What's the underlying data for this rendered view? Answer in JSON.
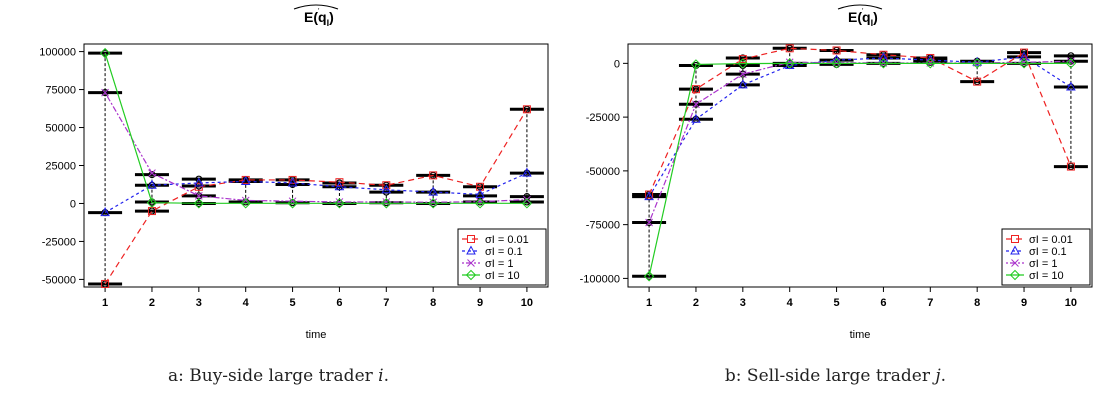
{
  "figure": {
    "caption_a_text": "a: Buy-side large trader ",
    "caption_a_var": "i",
    "caption_a_end": ".",
    "caption_b_text": "b: Sell-side large trader ",
    "caption_b_var": "j",
    "caption_b_end": "."
  },
  "chart_data": [
    {
      "type": "line",
      "title": "E(q_I)",
      "xlabel": "time",
      "ylabel": "",
      "x": [
        1,
        2,
        3,
        4,
        5,
        6,
        7,
        8,
        9,
        10
      ],
      "xlim": [
        0.55,
        10.45
      ],
      "ylim": [
        -55000,
        105000
      ],
      "yticks": [
        -50000,
        -25000,
        0,
        25000,
        50000,
        75000,
        100000
      ],
      "legend_position": "bottom-right",
      "grid": false,
      "series": [
        {
          "name": "σI = 0.01",
          "color": "#ee2222",
          "marker": "square",
          "dash": "6,4",
          "values": [
            -53000,
            -5000,
            11000,
            15500,
            15500,
            14000,
            12000,
            18500,
            11000,
            62000
          ]
        },
        {
          "name": "σI = 0.1",
          "color": "#2222ee",
          "marker": "triangle",
          "dash": "3,3",
          "values": [
            -6000,
            12000,
            13500,
            14500,
            13500,
            11000,
            9000,
            7500,
            6000,
            20000
          ]
        },
        {
          "name": "σI = 1",
          "color": "#aa33cc",
          "marker": "cross",
          "dash": "2,2,6,2",
          "values": [
            73000,
            20000,
            5000,
            2000,
            1500,
            1000,
            1000,
            800,
            1200,
            2500
          ]
        },
        {
          "name": "σI = 10",
          "color": "#22cc22",
          "marker": "diamond",
          "dash": "",
          "values": [
            99000,
            500,
            100,
            100,
            100,
            100,
            100,
            100,
            100,
            100
          ]
        }
      ],
      "boxes": [
        {
          "x": 1,
          "levels": [
            99000,
            73000,
            -6000,
            -53000
          ]
        },
        {
          "x": 2,
          "levels": [
            19000,
            12000,
            1000,
            -5000
          ]
        },
        {
          "x": 3,
          "levels": [
            16000,
            11500,
            5000,
            0
          ]
        },
        {
          "x": 4,
          "levels": [
            15500,
            14500,
            1000
          ]
        },
        {
          "x": 5,
          "levels": [
            15500,
            12500,
            500
          ]
        },
        {
          "x": 6,
          "levels": [
            13500,
            11000,
            0
          ]
        },
        {
          "x": 7,
          "levels": [
            12000,
            7500,
            500
          ]
        },
        {
          "x": 8,
          "levels": [
            18500,
            7500,
            0
          ]
        },
        {
          "x": 9,
          "levels": [
            11000,
            5000,
            1000
          ]
        },
        {
          "x": 10,
          "levels": [
            62000,
            20000,
            4500,
            1000
          ]
        }
      ]
    },
    {
      "type": "line",
      "title": "E(q_I)",
      "xlabel": "time",
      "ylabel": "",
      "x": [
        1,
        2,
        3,
        4,
        5,
        6,
        7,
        8,
        9,
        10
      ],
      "xlim": [
        0.55,
        10.45
      ],
      "ylim": [
        -104000,
        9000
      ],
      "yticks": [
        -100000,
        -75000,
        -50000,
        -25000,
        0
      ],
      "legend_position": "bottom-right",
      "grid": false,
      "series": [
        {
          "name": "σI = 0.01",
          "color": "#ee2222",
          "marker": "square",
          "dash": "6,4",
          "values": [
            -61000,
            -12000,
            2000,
            7000,
            6000,
            4000,
            2500,
            -8500,
            5000,
            -48000
          ]
        },
        {
          "name": "σI = 0.1",
          "color": "#2222ee",
          "marker": "triangle",
          "dash": "3,3",
          "values": [
            -62000,
            -26000,
            -10000,
            -1000,
            1500,
            2500,
            1500,
            500,
            3000,
            -11000
          ]
        },
        {
          "name": "σI = 1",
          "color": "#aa33cc",
          "marker": "cross",
          "dash": "2,2,6,2",
          "values": [
            -74000,
            -19000,
            -5000,
            500,
            300,
            200,
            200,
            200,
            500,
            1000
          ]
        },
        {
          "name": "σI = 10",
          "color": "#22cc22",
          "marker": "diamond",
          "dash": "",
          "values": [
            -99000,
            -500,
            -100,
            0,
            0,
            0,
            0,
            0,
            0,
            0
          ]
        }
      ],
      "boxes": [
        {
          "x": 1,
          "levels": [
            -61000,
            -62000,
            -74000,
            -99000
          ]
        },
        {
          "x": 2,
          "levels": [
            -1000,
            -12000,
            -19000,
            -26000
          ]
        },
        {
          "x": 3,
          "levels": [
            2500,
            -1000,
            -5000,
            -10000
          ]
        },
        {
          "x": 4,
          "levels": [
            7000,
            0,
            -1000
          ]
        },
        {
          "x": 5,
          "levels": [
            6000,
            1500,
            -500
          ]
        },
        {
          "x": 6,
          "levels": [
            4000,
            2500,
            0
          ]
        },
        {
          "x": 7,
          "levels": [
            2500,
            1500,
            500
          ]
        },
        {
          "x": 8,
          "levels": [
            1000,
            -8500
          ]
        },
        {
          "x": 9,
          "levels": [
            5000,
            3000,
            0
          ]
        },
        {
          "x": 10,
          "levels": [
            3500,
            1000,
            -11000,
            -48000
          ]
        }
      ]
    }
  ]
}
